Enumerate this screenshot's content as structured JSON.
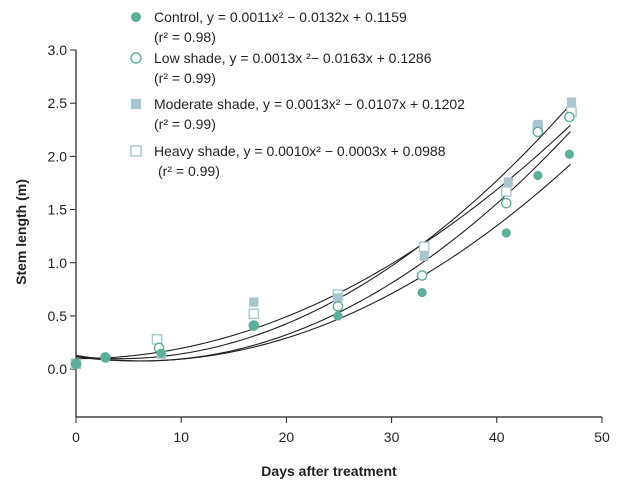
{
  "chart_data": {
    "type": "scatter",
    "xlabel": "Days after treatment",
    "ylabel": "Stem length (m)",
    "xlim": [
      0,
      50
    ],
    "ylim": [
      -0.45,
      3.0
    ],
    "x_ticks": [
      0,
      10,
      20,
      30,
      40,
      50
    ],
    "y_ticks": [
      0.0,
      0.5,
      1.0,
      1.5,
      2.0,
      2.5,
      3.0
    ],
    "x_tick_labels": [
      "0",
      "10",
      "20",
      "30",
      "40",
      "50"
    ],
    "y_tick_labels": [
      "0.0",
      "0.5",
      "1.0",
      "1.5",
      "2.0",
      "2.5",
      "3.0"
    ],
    "grid": false,
    "legend_position": "top-center",
    "series": [
      {
        "name": "Control",
        "marker": "filled-circle",
        "color": "#5fae9c",
        "equation": {
          "a": 0.0011,
          "b": -0.0132,
          "c": 0.1159
        },
        "legend_line1": "Control, y = 0.0011x² − 0.0132x + 0.1159",
        "legend_line2": "(r² = 0.98)",
        "points": [
          [
            0,
            0.05
          ],
          [
            2.8,
            0.11
          ],
          [
            8.1,
            0.15
          ],
          [
            16.9,
            0.41
          ],
          [
            24.9,
            0.5
          ],
          [
            32.9,
            0.72
          ],
          [
            40.9,
            1.28
          ],
          [
            43.9,
            1.82
          ],
          [
            46.9,
            2.02
          ]
        ]
      },
      {
        "name": "Low shade",
        "marker": "open-circle",
        "color": "#5fae9c",
        "equation": {
          "a": 0.0013,
          "b": -0.0163,
          "c": 0.1286
        },
        "legend_line1": "Low shade, y = 0.0013x ²− 0.0163x + 0.1286",
        "legend_line2": "(r² = 0.99)",
        "points": [
          [
            0,
            0.05
          ],
          [
            2.8,
            0.11
          ],
          [
            7.9,
            0.2
          ],
          [
            16.9,
            0.41
          ],
          [
            24.9,
            0.59
          ],
          [
            32.9,
            0.88
          ],
          [
            40.9,
            1.56
          ],
          [
            43.9,
            2.23
          ],
          [
            46.9,
            2.37
          ]
        ]
      },
      {
        "name": "Moderate shade",
        "marker": "filled-square",
        "color": "#a9c6d0",
        "equation": {
          "a": 0.0013,
          "b": -0.0107,
          "c": 0.1202
        },
        "legend_line1": "Moderate shade, y = 0.0013x² − 0.0107x + 0.1202",
        "legend_line2": "(r² = 0.99)",
        "points": [
          [
            0,
            0.05
          ],
          [
            8.1,
            0.14
          ],
          [
            16.9,
            0.63
          ],
          [
            24.9,
            0.67
          ],
          [
            33.1,
            1.06
          ],
          [
            41.1,
            1.76
          ],
          [
            43.9,
            2.3
          ],
          [
            47.1,
            2.51
          ]
        ]
      },
      {
        "name": "Heavy shade",
        "marker": "open-square",
        "color": "#a9c6d0",
        "equation": {
          "a": 0.001,
          "b": -0.0003,
          "c": 0.0988
        },
        "legend_line1": "Heavy shade, y = 0.0010x² − 0.0003x + 0.0988",
        "legend_line2": "(r² = 0.99)",
        "points": [
          [
            0,
            0.05
          ],
          [
            7.7,
            0.28
          ],
          [
            16.9,
            0.52
          ],
          [
            24.9,
            0.7
          ],
          [
            33.1,
            1.15
          ],
          [
            40.9,
            1.67
          ],
          [
            43.9,
            2.27
          ],
          [
            47.1,
            2.42
          ]
        ]
      }
    ]
  }
}
